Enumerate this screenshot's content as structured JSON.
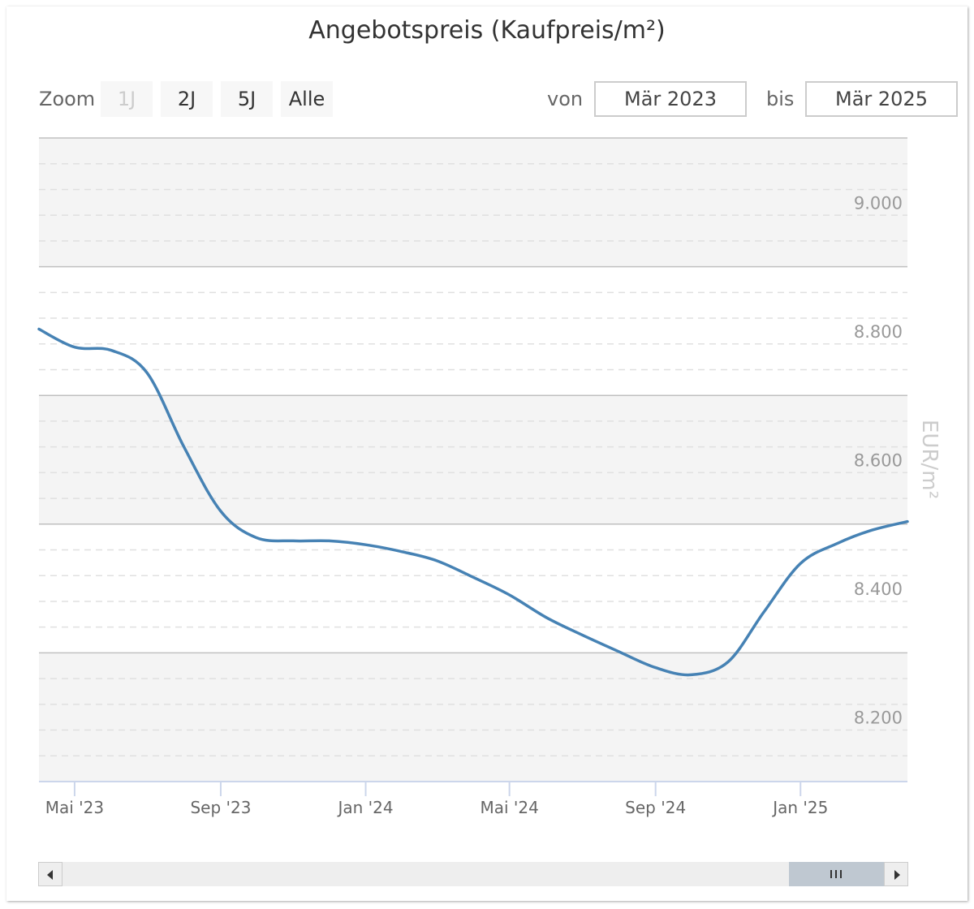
{
  "rangeSelector": {
    "zoom_label": "Zoom",
    "buttons": [
      {
        "label": "1J",
        "disabled": true
      },
      {
        "label": "2J",
        "disabled": false
      },
      {
        "label": "5J",
        "disabled": false
      },
      {
        "label": "Alle",
        "disabled": false
      }
    ],
    "from_label": "von",
    "from_value": "Mär 2023",
    "to_label": "bis",
    "to_value": "Mär 2025"
  },
  "chart_data": {
    "type": "line",
    "title": "Angebotspreis (Kaufpreis/m²)",
    "xlabel": "",
    "ylabel": "EUR/m²",
    "x_axis": {
      "min": "2023-04-01",
      "max": "2025-04-01",
      "ticks": [
        {
          "date": "2023-05-01",
          "label": "Mai '23"
        },
        {
          "date": "2023-09-01",
          "label": "Sep '23"
        },
        {
          "date": "2024-01-01",
          "label": "Jan '24"
        },
        {
          "date": "2024-05-01",
          "label": "Mai '24"
        },
        {
          "date": "2024-09-01",
          "label": "Sep '24"
        },
        {
          "date": "2025-01-01",
          "label": "Jan '25"
        }
      ]
    },
    "y_axis": {
      "min": 8100,
      "max": 9100,
      "ticks": [
        {
          "value": 9000,
          "label": "9.000"
        },
        {
          "value": 8800,
          "label": "8.800"
        },
        {
          "value": 8600,
          "label": "8.600"
        },
        {
          "value": 8400,
          "label": "8.400"
        },
        {
          "value": 8200,
          "label": "8.200"
        }
      ],
      "position": "right",
      "alternate_bands": true,
      "minor_grid": true
    },
    "series": [
      {
        "color": "#4682b4",
        "points": [
          {
            "x": "2023-04-01",
            "y": 8803
          },
          {
            "x": "2023-05-01",
            "y": 8775
          },
          {
            "x": "2023-06-01",
            "y": 8770
          },
          {
            "x": "2023-07-01",
            "y": 8735
          },
          {
            "x": "2023-08-01",
            "y": 8620
          },
          {
            "x": "2023-09-01",
            "y": 8520
          },
          {
            "x": "2023-10-01",
            "y": 8479
          },
          {
            "x": "2023-11-01",
            "y": 8474
          },
          {
            "x": "2023-12-01",
            "y": 8474
          },
          {
            "x": "2024-01-01",
            "y": 8468
          },
          {
            "x": "2024-02-01",
            "y": 8457
          },
          {
            "x": "2024-03-01",
            "y": 8443
          },
          {
            "x": "2024-04-01",
            "y": 8417
          },
          {
            "x": "2024-05-01",
            "y": 8390
          },
          {
            "x": "2024-06-01",
            "y": 8355
          },
          {
            "x": "2024-07-01",
            "y": 8328
          },
          {
            "x": "2024-08-01",
            "y": 8302
          },
          {
            "x": "2024-09-01",
            "y": 8277
          },
          {
            "x": "2024-10-01",
            "y": 8266
          },
          {
            "x": "2024-11-01",
            "y": 8286
          },
          {
            "x": "2024-12-01",
            "y": 8363
          },
          {
            "x": "2025-01-01",
            "y": 8439
          },
          {
            "x": "2025-02-01",
            "y": 8470
          },
          {
            "x": "2025-03-01",
            "y": 8490
          },
          {
            "x": "2025-04-01",
            "y": 8504
          }
        ]
      }
    ]
  }
}
